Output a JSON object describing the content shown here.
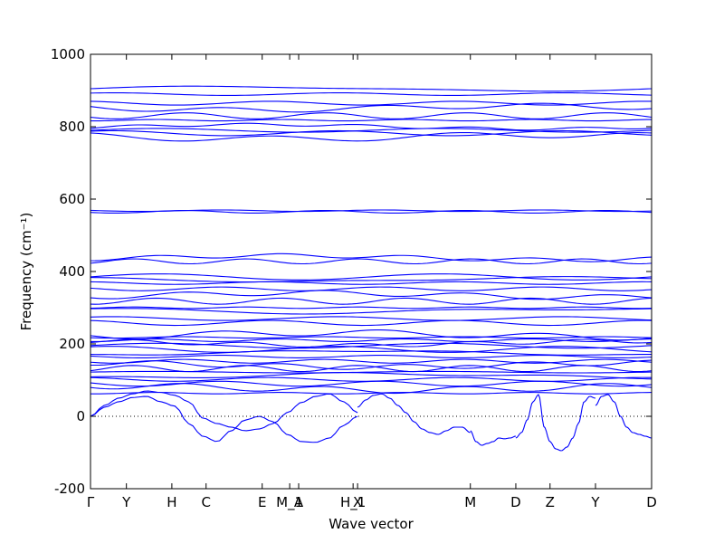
{
  "chart_data": {
    "type": "line",
    "title": "",
    "xlabel": "Wave vector",
    "ylabel": "Frequency (cm⁻¹)",
    "ylim": [
      -200,
      1000
    ],
    "y_ticks": [
      -200,
      0,
      200,
      400,
      600,
      800,
      1000
    ],
    "x_ticks": [
      {
        "label": "Γ",
        "pos": 0.0
      },
      {
        "label": "Y",
        "pos": 0.064
      },
      {
        "label": "H",
        "pos": 0.145
      },
      {
        "label": "C",
        "pos": 0.206
      },
      {
        "label": "E",
        "pos": 0.306
      },
      {
        "label": "M_1",
        "pos": 0.355
      },
      {
        "label": "A",
        "pos": 0.371
      },
      {
        "label": "H_1",
        "pos": 0.468
      },
      {
        "label": "X",
        "pos": 0.476
      },
      {
        "label": "M",
        "pos": 0.677
      },
      {
        "label": "D",
        "pos": 0.758
      },
      {
        "label": "Z",
        "pos": 0.819
      },
      {
        "label": "Y",
        "pos": 0.9
      },
      {
        "label": "D",
        "pos": 1.0
      }
    ],
    "zero_reference_line": 0,
    "series_color": "#0000ff",
    "flat_bands_cm1": [
      905,
      890,
      865,
      852,
      830,
      818,
      800,
      790,
      782,
      772,
      568,
      565,
      438,
      428,
      385,
      378,
      368,
      352,
      335,
      318,
      300,
      292,
      270,
      258,
      225,
      218,
      210,
      202,
      195,
      185,
      175,
      165,
      152,
      142,
      132,
      122,
      112,
      102,
      90,
      78,
      64
    ],
    "acoustic_branches": [
      {
        "segment": "Γ–E",
        "values": [
          0,
          25,
          40,
          52,
          55,
          40,
          28,
          -20,
          -55,
          -70,
          -40,
          -10,
          0,
          -15,
          -50,
          -70,
          -72,
          -60,
          -25,
          0
        ]
      },
      {
        "segment": "Γ–E",
        "values": [
          0,
          30,
          50,
          62,
          70,
          66,
          58,
          40,
          -5,
          -20,
          -30,
          -40,
          -35,
          -20,
          10,
          38,
          55,
          62,
          40,
          10
        ]
      },
      {
        "segment": "X–M",
        "values": [
          25,
          45,
          58,
          62,
          50,
          30,
          10,
          -15,
          -35,
          -45,
          -50,
          -40,
          -30,
          -30,
          -45
        ]
      },
      {
        "segment": "M–D",
        "values": [
          -40,
          -70,
          -80,
          -75,
          -70,
          -60,
          -62,
          -60,
          -55
        ]
      },
      {
        "segment": "D–Y",
        "values": [
          -60,
          -45,
          -10,
          40,
          60,
          -30,
          -70,
          -90,
          -95,
          -85,
          -60,
          -20,
          40,
          55,
          50
        ]
      },
      {
        "segment": "Y–D",
        "values": [
          30,
          55,
          60,
          40,
          0,
          -30,
          -45,
          -50,
          -55,
          -60
        ]
      }
    ]
  }
}
